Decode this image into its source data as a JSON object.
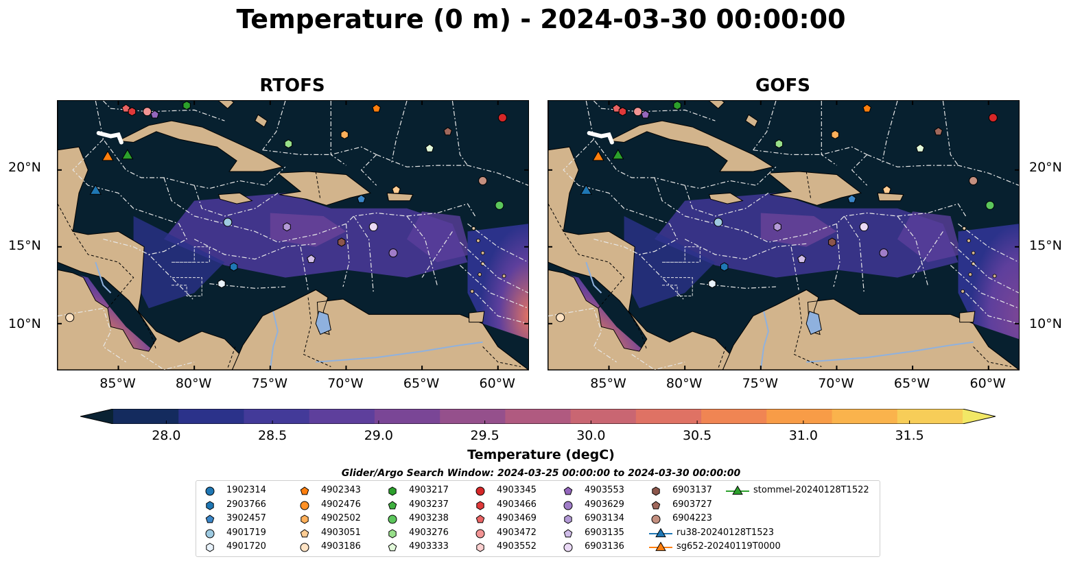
{
  "title": "Temperature (0 m) - 2024-03-30 00:00:00",
  "panels": [
    {
      "title": "RTOFS"
    },
    {
      "title": "GOFS"
    }
  ],
  "lon_ticks": [
    "85°W",
    "80°W",
    "75°W",
    "70°W",
    "65°W",
    "60°W"
  ],
  "lat_ticks": [
    "20°N",
    "15°N",
    "10°N"
  ],
  "colorbar": {
    "label": "Temperature (degC)",
    "ticks": [
      "28.0",
      "28.5",
      "29.0",
      "29.5",
      "30.0",
      "30.5",
      "31.0",
      "31.5"
    ],
    "colors": [
      "#0a2233",
      "#142b5e",
      "#2b328a",
      "#433a99",
      "#5e3f9c",
      "#7a4696",
      "#95508c",
      "#b05a80",
      "#c96672",
      "#df7264",
      "#f08553",
      "#f89c47",
      "#fab34c",
      "#f7cd58",
      "#f2e866"
    ]
  },
  "legend_title": "Glider/Argo Search Window: 2024-03-25 00:00:00 to 2024-03-30 00:00:00",
  "legend": [
    {
      "label": "1902314",
      "marker": "circle",
      "color": "#1f77b4"
    },
    {
      "label": "2903766",
      "marker": "hexagon",
      "color": "#1f77b4"
    },
    {
      "label": "3902457",
      "marker": "pentagon",
      "color": "#3a86c8"
    },
    {
      "label": "4901719",
      "marker": "circle",
      "color": "#9ecae1"
    },
    {
      "label": "4901720",
      "marker": "hexagon",
      "color": "#e8f2fb"
    },
    {
      "label": "4902343",
      "marker": "pentagon",
      "color": "#ff7f0e"
    },
    {
      "label": "4902476",
      "marker": "circle",
      "color": "#ff9126"
    },
    {
      "label": "4902502",
      "marker": "hexagon",
      "color": "#ffb05a"
    },
    {
      "label": "4903051",
      "marker": "pentagon",
      "color": "#ffcd94"
    },
    {
      "label": "4903186",
      "marker": "circle",
      "color": "#fee3c4"
    },
    {
      "label": "4903217",
      "marker": "hexagon",
      "color": "#2ca02c"
    },
    {
      "label": "4903237",
      "marker": "pentagon",
      "color": "#3fb03f"
    },
    {
      "label": "4903238",
      "marker": "circle",
      "color": "#5cc65c"
    },
    {
      "label": "4903276",
      "marker": "hexagon",
      "color": "#98df8a"
    },
    {
      "label": "4903333",
      "marker": "pentagon",
      "color": "#e2f9da"
    },
    {
      "label": "4903345",
      "marker": "circle",
      "color": "#d62728"
    },
    {
      "label": "4903466",
      "marker": "hexagon",
      "color": "#e0393a"
    },
    {
      "label": "4903469",
      "marker": "pentagon",
      "color": "#ea6464"
    },
    {
      "label": "4903472",
      "marker": "circle",
      "color": "#f29494"
    },
    {
      "label": "4903552",
      "marker": "hexagon",
      "color": "#fbd0d0"
    },
    {
      "label": "4903553",
      "marker": "pentagon",
      "color": "#9467bd"
    },
    {
      "label": "4903629",
      "marker": "circle",
      "color": "#a07dc8"
    },
    {
      "label": "6903134",
      "marker": "hexagon",
      "color": "#b39ad6"
    },
    {
      "label": "6903135",
      "marker": "pentagon",
      "color": "#d0bde9"
    },
    {
      "label": "6903136",
      "marker": "circle",
      "color": "#ead9f5"
    },
    {
      "label": "6903137",
      "marker": "hexagon",
      "color": "#8c564b"
    },
    {
      "label": "6903727",
      "marker": "pentagon",
      "color": "#a0685c"
    },
    {
      "label": "6904223",
      "marker": "circle",
      "color": "#c49080"
    },
    {
      "label": "ru38-20240128T1523",
      "marker": "triangle-line",
      "color": "#1f77b4"
    },
    {
      "label": "sg652-20240119T0000",
      "marker": "triangle-line",
      "color": "#ff7f0e"
    },
    {
      "label": "stommel-20240128T1522",
      "marker": "triangle-line",
      "color": "#2ca02c"
    }
  ],
  "map_extent": {
    "lon": [
      -89,
      -58
    ],
    "lat": [
      7,
      24.5
    ]
  },
  "glider_positions": [
    {
      "label": "ru38-20240128T1523",
      "lon": -86.5,
      "lat": 18.7,
      "color": "#1f77b4"
    },
    {
      "label": "sg652-20240119T0000",
      "lon": -85.7,
      "lat": 20.9,
      "color": "#ff7f0e"
    },
    {
      "label": "stommel-20240128T1522",
      "lon": -84.4,
      "lat": 21.0,
      "color": "#2ca02c"
    }
  ],
  "float_positions": [
    {
      "label": "4903345",
      "lon": -59.7,
      "lat": 23.4
    },
    {
      "label": "4902343",
      "lon": -68.0,
      "lat": 24.0
    },
    {
      "label": "6903727",
      "lon": -63.3,
      "lat": 22.5
    },
    {
      "label": "4902502",
      "lon": -70.1,
      "lat": 22.3
    },
    {
      "label": "4903276",
      "lon": -73.8,
      "lat": 21.7
    },
    {
      "label": "4903333",
      "lon": -64.5,
      "lat": 21.4
    },
    {
      "label": "6904223",
      "lon": -61.0,
      "lat": 19.3
    },
    {
      "label": "4903051",
      "lon": -66.7,
      "lat": 18.7
    },
    {
      "label": "3902457",
      "lon": -69.0,
      "lat": 18.1
    },
    {
      "label": "4903238",
      "lon": -59.9,
      "lat": 17.7
    },
    {
      "label": "4901719",
      "lon": -77.8,
      "lat": 16.6
    },
    {
      "label": "6903136",
      "lon": -68.2,
      "lat": 16.3
    },
    {
      "label": "6903134",
      "lon": -73.9,
      "lat": 16.3
    },
    {
      "label": "6903137",
      "lon": -70.3,
      "lat": 15.3
    },
    {
      "label": "4903629",
      "lon": -66.9,
      "lat": 14.6
    },
    {
      "label": "2903766",
      "lon": -77.4,
      "lat": 13.7
    },
    {
      "label": "6903135",
      "lon": -72.3,
      "lat": 14.2
    },
    {
      "label": "4901720",
      "lon": -78.2,
      "lat": 12.6
    },
    {
      "label": "4903186",
      "lon": -88.2,
      "lat": 10.4
    },
    {
      "label": "4903469",
      "lon": -84.5,
      "lat": 24.0
    },
    {
      "label": "4903466",
      "lon": -84.1,
      "lat": 23.8
    },
    {
      "label": "4903472",
      "lon": -83.1,
      "lat": 23.8
    },
    {
      "label": "4903553",
      "lon": -82.6,
      "lat": 23.6
    },
    {
      "label": "4903217",
      "lon": -80.5,
      "lat": 24.2
    }
  ]
}
